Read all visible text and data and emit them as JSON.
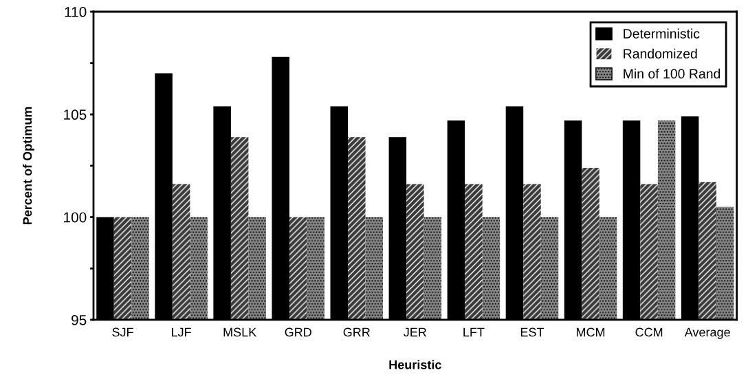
{
  "chart_data": {
    "type": "bar",
    "xlabel": "Heuristic",
    "ylabel": "Percent of Optimum",
    "categories": [
      "SJF",
      "LJF",
      "MSLK",
      "GRD",
      "GRR",
      "JER",
      "LFT",
      "EST",
      "MCM",
      "CCM",
      "Average"
    ],
    "series": [
      {
        "name": "Deterministic",
        "color": "#000000",
        "values": [
          100,
          107.0,
          105.4,
          107.8,
          105.4,
          103.9,
          104.7,
          105.4,
          104.7,
          104.7,
          104.9
        ]
      },
      {
        "name": "Randomized",
        "color": "#3a3a3a",
        "values": [
          100,
          101.6,
          103.9,
          100,
          103.9,
          101.6,
          101.6,
          101.6,
          102.4,
          101.6,
          101.7
        ]
      },
      {
        "name": "Min of 100 Rand",
        "color": "#8a8a8a",
        "values": [
          100,
          100,
          100,
          100,
          100,
          100,
          100,
          100,
          100,
          104.7,
          100.5
        ]
      }
    ],
    "ylim": [
      95,
      110
    ],
    "yticks": [
      95,
      {
        "value": 97.5,
        "label": null
      },
      100,
      {
        "value": 102.5,
        "label": null
      },
      105,
      {
        "value": 107.5,
        "label": null
      },
      110
    ],
    "grid": false,
    "legend": "top right"
  }
}
